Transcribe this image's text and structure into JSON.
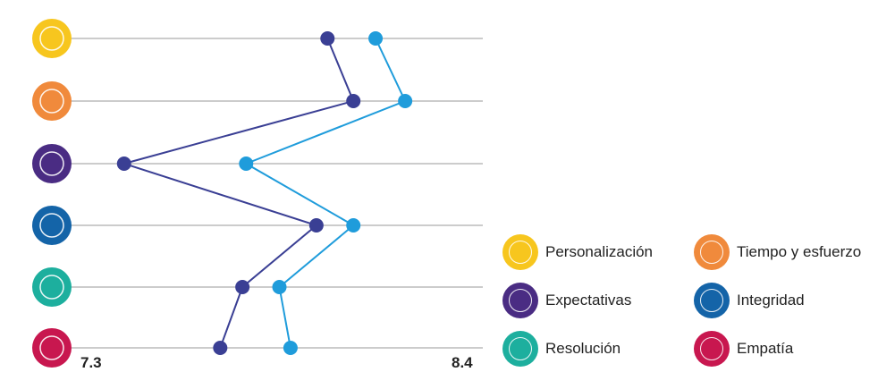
{
  "chart_data": {
    "type": "line",
    "categories": [
      "Personalización",
      "Tiempo y esfuerzo",
      "Expectativas",
      "Integridad",
      "Resolución",
      "Empatía"
    ],
    "category_icons": [
      "personalization-icon",
      "hourglass-icon",
      "expectation-sign-icon",
      "scales-icon",
      "lightbulb-icon",
      "empathy-heart-icon"
    ],
    "category_colors": [
      "#F7C61E",
      "#F08A3C",
      "#4A2C83",
      "#1464A8",
      "#1DAF9E",
      "#C8174F"
    ],
    "series": [
      {
        "color": "#3A3F94",
        "values": [
          7.98,
          8.05,
          7.43,
          7.95,
          7.75,
          7.69
        ]
      },
      {
        "color": "#1F9CDB",
        "values": [
          8.11,
          8.19,
          7.76,
          8.05,
          7.85,
          7.88
        ]
      }
    ],
    "xlim": [
      7.3,
      8.4
    ],
    "x_min_label": "7.3",
    "x_max_label": "8.4",
    "legend": [
      {
        "label": "Personalización",
        "color": "#F7C61E",
        "icon": "personalization-icon"
      },
      {
        "label": "Tiempo y esfuerzo",
        "color": "#F08A3C",
        "icon": "hourglass-icon"
      },
      {
        "label": "Expectativas",
        "color": "#4A2C83",
        "icon": "expectation-sign-icon"
      },
      {
        "label": "Integridad",
        "color": "#1464A8",
        "icon": "scales-icon"
      },
      {
        "label": "Resolución",
        "color": "#1DAF9E",
        "icon": "lightbulb-icon"
      },
      {
        "label": "Empatía",
        "color": "#C8174F",
        "icon": "empathy-heart-icon"
      }
    ],
    "legend_position": "bottom-right",
    "grid": true
  }
}
